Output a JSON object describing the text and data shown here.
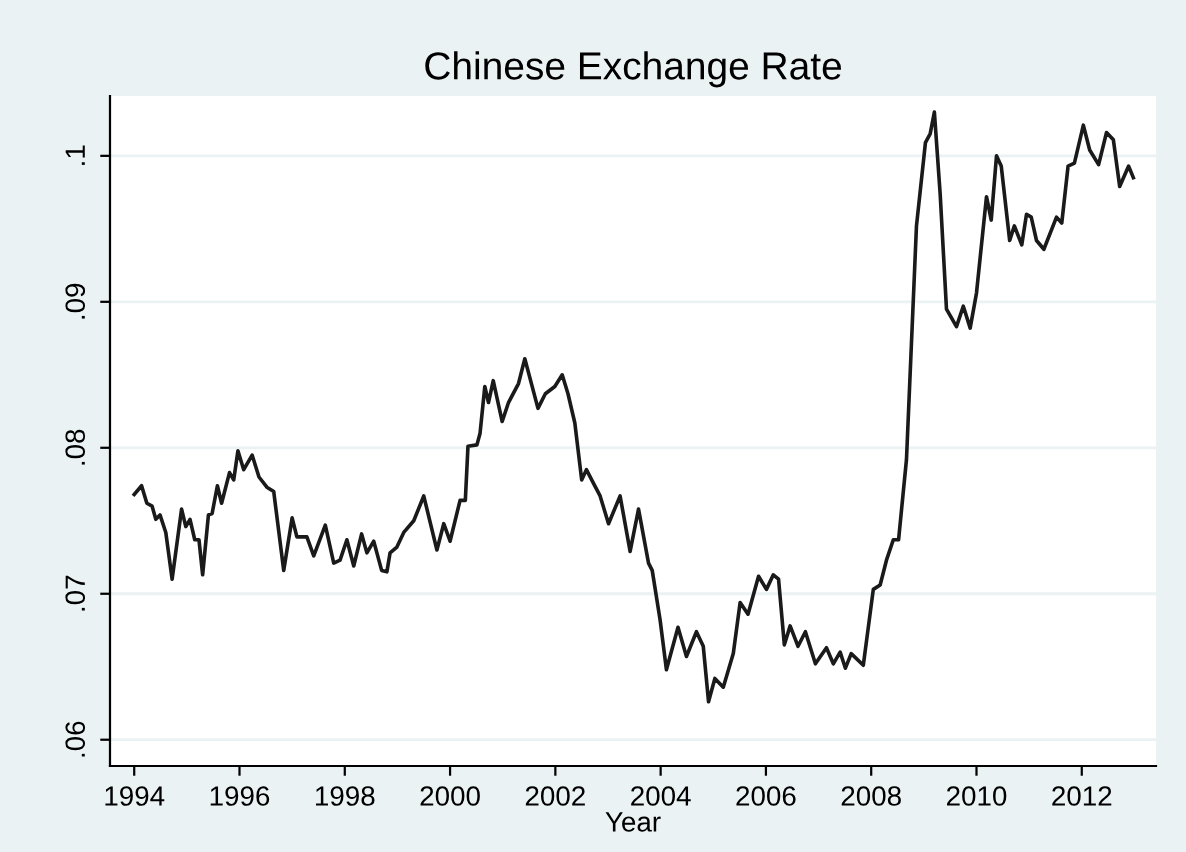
{
  "chart_data": {
    "type": "line",
    "title": "Chinese Exchange Rate",
    "xlabel": "Year",
    "xlim": [
      1993.54,
      2013.41
    ],
    "ylim": [
      0.0582,
      0.1041
    ],
    "xticks": [
      1994,
      1996,
      1998,
      2000,
      2002,
      2004,
      2006,
      2008,
      2010,
      2012
    ],
    "yticks": [
      {
        "value": 0.06,
        "label": ".06"
      },
      {
        "value": 0.07,
        "label": ".07"
      },
      {
        "value": 0.08,
        "label": ".08"
      },
      {
        "value": 0.09,
        "label": ".09"
      },
      {
        "value": 0.1,
        "label": ".1"
      }
    ],
    "grid": "y",
    "legend": false,
    "marker": "none",
    "line_style": "solid",
    "series": [
      {
        "color": "#1a1a1a",
        "x": [
          1994.0,
          1994.14,
          1994.24,
          1994.34,
          1994.41,
          1994.49,
          1994.6,
          1994.72,
          1994.9,
          1994.98,
          1995.06,
          1995.15,
          1995.23,
          1995.3,
          1995.41,
          1995.48,
          1995.58,
          1995.66,
          1995.81,
          1995.89,
          1995.97,
          1996.08,
          1996.24,
          1996.37,
          1996.52,
          1996.65,
          1996.84,
          1997.0,
          1997.09,
          1997.28,
          1997.41,
          1997.63,
          1997.79,
          1997.91,
          1998.04,
          1998.17,
          1998.32,
          1998.42,
          1998.55,
          1998.7,
          1998.8,
          1998.86,
          1998.99,
          1999.12,
          1999.31,
          1999.5,
          1999.75,
          1999.88,
          2000.0,
          2000.19,
          2000.29,
          2000.34,
          2000.51,
          2000.57,
          2000.66,
          2000.73,
          2000.82,
          2000.99,
          2001.11,
          2001.3,
          2001.42,
          2001.67,
          2001.81,
          2001.99,
          2002.13,
          2002.24,
          2002.37,
          2002.5,
          2002.59,
          2002.72,
          2002.85,
          2003.01,
          2003.23,
          2003.42,
          2003.58,
          2003.77,
          2003.84,
          2003.99,
          2004.11,
          2004.33,
          2004.49,
          2004.68,
          2004.81,
          2004.91,
          2005.03,
          2005.19,
          2005.38,
          2005.51,
          2005.66,
          2005.86,
          2006.01,
          2006.14,
          2006.24,
          2006.35,
          2006.46,
          2006.61,
          2006.75,
          2006.94,
          2007.15,
          2007.28,
          2007.41,
          2007.51,
          2007.62,
          2007.85,
          2008.04,
          2008.17,
          2008.29,
          2008.42,
          2008.52,
          2008.67,
          2008.86,
          2009.03,
          2009.12,
          2009.2,
          2009.31,
          2009.43,
          2009.62,
          2009.75,
          2009.88,
          2010.0,
          2010.19,
          2010.28,
          2010.38,
          2010.47,
          2010.63,
          2010.72,
          2010.86,
          2010.95,
          2011.04,
          2011.14,
          2011.28,
          2011.52,
          2011.62,
          2011.74,
          2011.86,
          2012.03,
          2012.15,
          2012.32,
          2012.47,
          2012.6,
          2012.72,
          2012.89,
          2012.98
        ],
        "values": [
          0.0768,
          0.0774,
          0.0762,
          0.076,
          0.0751,
          0.0754,
          0.0742,
          0.071,
          0.0758,
          0.0746,
          0.0751,
          0.0737,
          0.0737,
          0.0713,
          0.0754,
          0.0755,
          0.0774,
          0.0762,
          0.0783,
          0.0778,
          0.0798,
          0.0785,
          0.0795,
          0.078,
          0.0773,
          0.077,
          0.0716,
          0.0752,
          0.0739,
          0.0739,
          0.0726,
          0.0747,
          0.0721,
          0.0723,
          0.0737,
          0.0719,
          0.0741,
          0.0728,
          0.0736,
          0.0716,
          0.0715,
          0.0728,
          0.0732,
          0.0742,
          0.075,
          0.0767,
          0.073,
          0.0748,
          0.0736,
          0.0764,
          0.0764,
          0.0801,
          0.0802,
          0.081,
          0.0842,
          0.0831,
          0.0846,
          0.0818,
          0.0831,
          0.0844,
          0.0861,
          0.0827,
          0.0837,
          0.0842,
          0.085,
          0.0837,
          0.0817,
          0.0778,
          0.0785,
          0.0776,
          0.0767,
          0.0748,
          0.0767,
          0.0729,
          0.0758,
          0.0721,
          0.0716,
          0.0682,
          0.0648,
          0.0677,
          0.0657,
          0.0674,
          0.0664,
          0.0626,
          0.0642,
          0.0636,
          0.0659,
          0.0694,
          0.0686,
          0.0712,
          0.0703,
          0.0713,
          0.071,
          0.0665,
          0.0678,
          0.0664,
          0.0674,
          0.0652,
          0.0663,
          0.0652,
          0.066,
          0.0649,
          0.0659,
          0.0651,
          0.0703,
          0.0706,
          0.0723,
          0.0737,
          0.0737,
          0.0792,
          0.0952,
          0.1009,
          0.1015,
          0.103,
          0.0974,
          0.0895,
          0.0883,
          0.0897,
          0.0882,
          0.0906,
          0.0972,
          0.0956,
          0.1,
          0.0993,
          0.0942,
          0.0952,
          0.0939,
          0.096,
          0.0958,
          0.0942,
          0.0936,
          0.0958,
          0.0954,
          0.0993,
          0.0995,
          0.1021,
          0.1004,
          0.0994,
          0.1016,
          0.1011,
          0.0979,
          0.0993,
          0.0985
        ]
      }
    ]
  }
}
